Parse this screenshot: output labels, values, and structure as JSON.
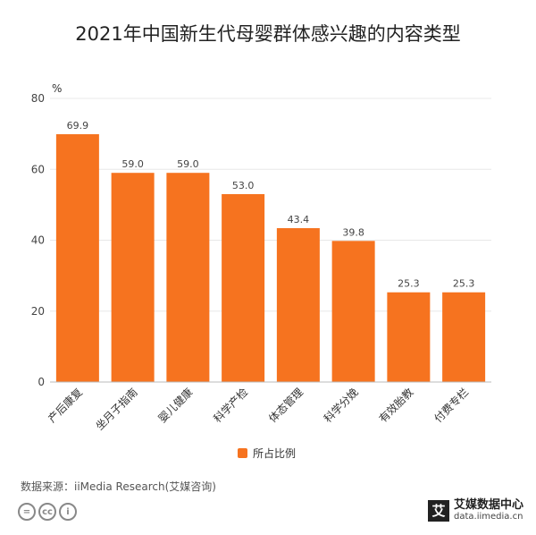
{
  "title": "2021年中国新生代母婴群体感兴趣的内容类型",
  "source": "数据来源：iiMedia Research(艾媒咨询)",
  "logo": {
    "name": "艾媒数据中心",
    "url": "data.iimedia.cn",
    "mark": "艾"
  },
  "cc_icons": [
    "=",
    "cc",
    "i"
  ],
  "colors": {
    "bar": "#f6731f",
    "grid": "#e8e8e8",
    "axis": "#bbbbbb"
  },
  "chart_data": {
    "type": "bar",
    "title": "2021年中国新生代母婴群体感兴趣的内容类型",
    "ylabel": "%",
    "ylim": [
      0,
      80
    ],
    "yticks": [
      0,
      20,
      40,
      60,
      80
    ],
    "grid": true,
    "legend_position": "bottom",
    "categories": [
      "产后康复",
      "坐月子指南",
      "婴儿健康",
      "科学产检",
      "体态管理",
      "科学分娩",
      "有效胎教",
      "付费专栏"
    ],
    "series": [
      {
        "name": "所占比例",
        "values": [
          69.9,
          59.0,
          59.0,
          53.0,
          43.4,
          39.8,
          25.3,
          25.3
        ]
      }
    ]
  }
}
